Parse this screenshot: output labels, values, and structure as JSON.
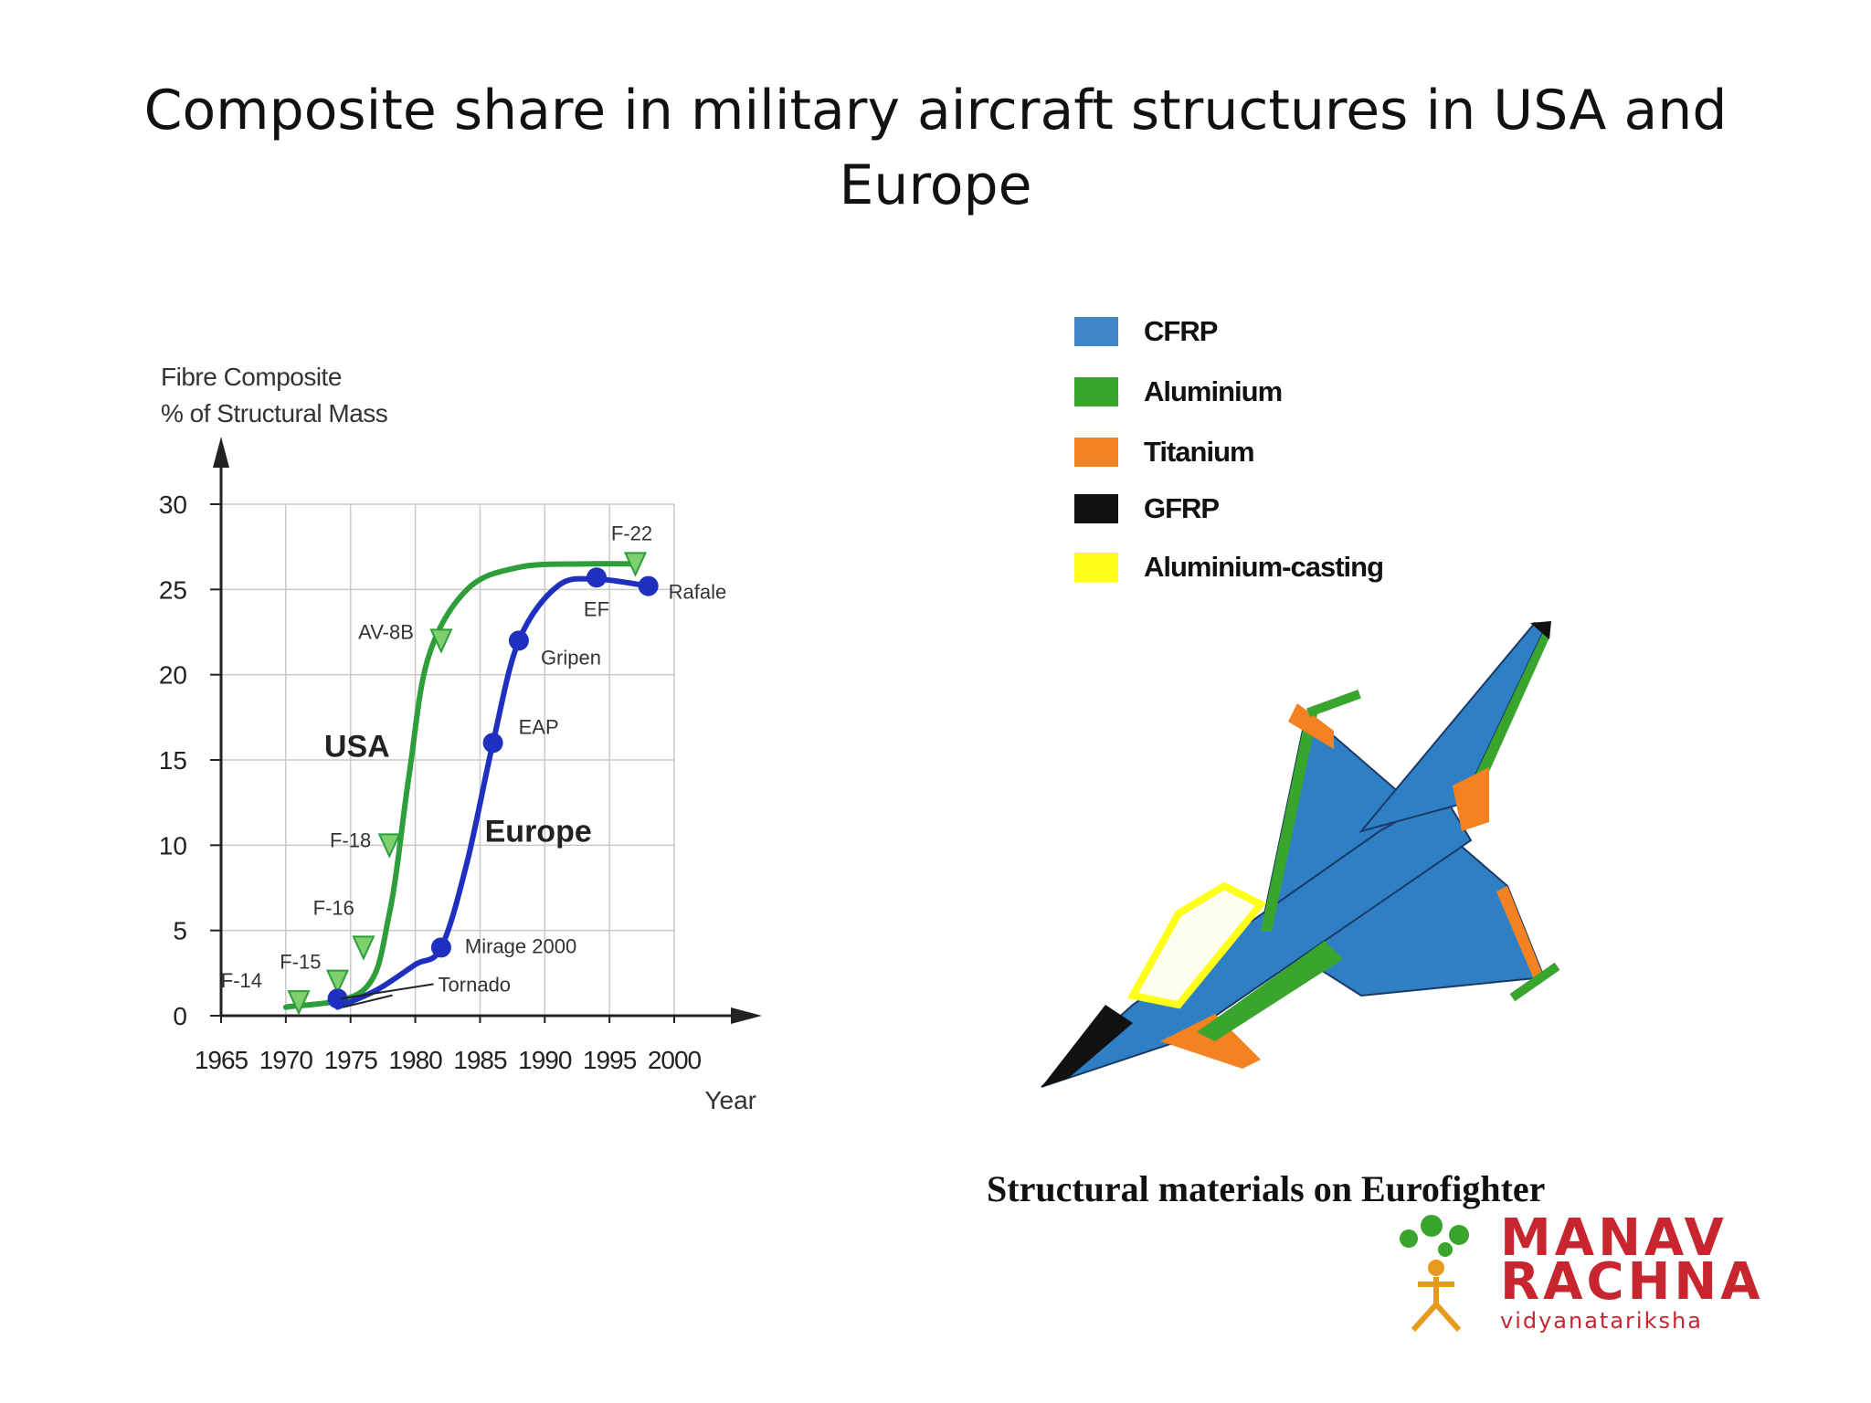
{
  "slide": {
    "title": "Composite share in military aircraft structures in USA and Europe",
    "caption": "Structural materials on Eurofighter"
  },
  "legend": {
    "items": [
      {
        "label": "CFRP",
        "color": "#3f87c8"
      },
      {
        "label": "Aluminium",
        "color": "#3aa52c"
      },
      {
        "label": "Titanium",
        "color": "#f58220"
      },
      {
        "label": "GFRP",
        "color": "#111111"
      },
      {
        "label": "Aluminium-casting",
        "color": "#ffff1a"
      }
    ]
  },
  "logo": {
    "line1": "MANAV",
    "line2": "RACHNA",
    "line3": "vidyanatariksha"
  },
  "colors": {
    "usa": "#2e9e3a",
    "europe": "#1f2fbf",
    "aircraft_body": "#2f7fc4"
  },
  "chart_data": {
    "type": "line",
    "ylabel_line1": "Fibre Composite",
    "ylabel_line2": "% of Structural Mass",
    "xlabel": "Year",
    "xlim": [
      1965,
      2000
    ],
    "ylim": [
      0,
      30
    ],
    "x_ticks": [
      1965,
      1970,
      1975,
      1980,
      1985,
      1990,
      1995,
      2000
    ],
    "y_ticks": [
      0,
      5,
      10,
      15,
      20,
      25,
      30
    ],
    "grid": true,
    "series": [
      {
        "name": "USA",
        "color": "#2e9e3a",
        "x": [
          1970,
          1976,
          1978,
          1979.5,
          1981,
          1984,
          1988,
          1993,
          1997
        ],
        "y": [
          0.5,
          1.5,
          6,
          14,
          21,
          25,
          26.3,
          26.5,
          26.5
        ],
        "points": [
          {
            "label": "F-14",
            "x": 1971,
            "y": 0.8
          },
          {
            "label": "F-15",
            "x": 1974,
            "y": 2
          },
          {
            "label": "F-16",
            "x": 1976,
            "y": 4
          },
          {
            "label": "F-18",
            "x": 1978,
            "y": 10
          },
          {
            "label": "AV-8B",
            "x": 1982,
            "y": 22
          },
          {
            "label": "F-22",
            "x": 1997,
            "y": 26.5
          }
        ]
      },
      {
        "name": "Europe",
        "color": "#1f2fbf",
        "x": [
          1974,
          1977,
          1980,
          1982,
          1984,
          1986,
          1988,
          1991,
          1994,
          1998
        ],
        "y": [
          0.5,
          1.5,
          3,
          4,
          9,
          16,
          22,
          25.2,
          25.6,
          25.2
        ],
        "points": [
          {
            "label": "Tornado",
            "x": 1974,
            "y": 1
          },
          {
            "label": "Mirage 2000",
            "x": 1982,
            "y": 4
          },
          {
            "label": "EAP",
            "x": 1986,
            "y": 16
          },
          {
            "label": "Gripen",
            "x": 1988,
            "y": 22
          },
          {
            "label": "EF",
            "x": 1994,
            "y": 25.7
          },
          {
            "label": "Rafale",
            "x": 1998,
            "y": 25.2
          }
        ]
      }
    ]
  }
}
